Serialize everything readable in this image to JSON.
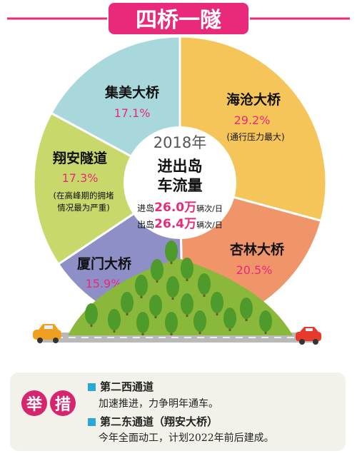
{
  "chart_data": {
    "type": "pie",
    "title": "四桥一隧",
    "center": {
      "year_label": "2018年",
      "title_line1": "进出岛",
      "title_line2": "车流量",
      "in_prefix": "进岛",
      "in_value": "26.0万",
      "in_unit": "辆次/日",
      "out_prefix": "出岛",
      "out_value": "26.4万",
      "out_unit": "辆次/日"
    },
    "slices": [
      {
        "name": "海沧大桥",
        "value": 29.2,
        "label": "29.2%",
        "note": "(通行压力最大)",
        "color": "#f5c55a"
      },
      {
        "name": "杏林大桥",
        "value": 20.5,
        "label": "20.5%",
        "note": "",
        "color": "#f0956a"
      },
      {
        "name": "厦门大桥",
        "value": 15.9,
        "label": "15.9%",
        "note": "",
        "color": "#8d8fc6"
      },
      {
        "name": "翔安隧道",
        "value": 17.3,
        "label": "17.3%",
        "note": "(在高峰期的拥堵情况最为严重)",
        "color": "#c8d86a"
      },
      {
        "name": "集美大桥",
        "value": 17.1,
        "label": "17.1%",
        "note": "",
        "color": "#a9d8dc"
      }
    ]
  },
  "measures": {
    "tag_char1": "举",
    "tag_char2": "措",
    "items": [
      {
        "title": "第二西通道",
        "desc": "加速推进，力争明年通车。"
      },
      {
        "title": "第二东通道（翔安大桥）",
        "desc": "今年全面动工，计划2022年前后建成。"
      }
    ]
  },
  "colors": {
    "title_bg": "#e9297a",
    "percent": "#e9297a",
    "highlight": "#e9297a",
    "hill": "#8ab83a",
    "tree": "#4e9a2a",
    "road": "#b9b9b9",
    "car_left": "#f0a020",
    "car_right": "#e63a2a"
  }
}
